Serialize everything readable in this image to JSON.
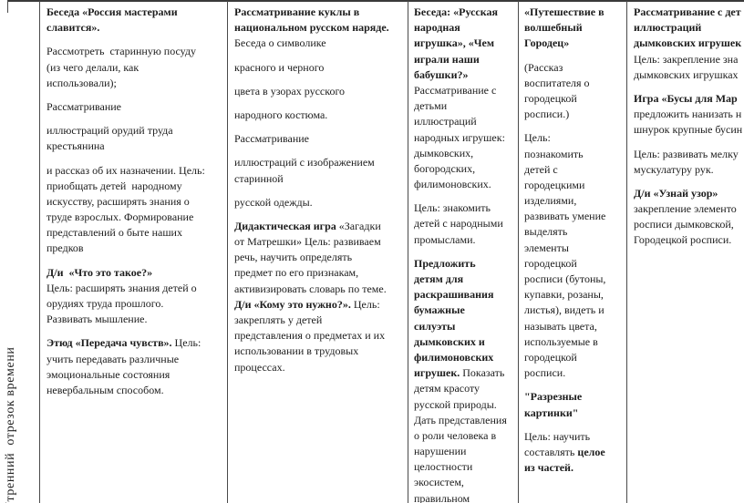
{
  "colors": {
    "border": "#4a4a4a",
    "text": "#1c1c1c"
  },
  "table": {
    "row_label": "Утренний  отрезок времени",
    "columns": [
      {
        "paragraphs": [
          {
            "lines": [
              [
                {
                  "t": "Беседа «Россия мастерами",
                  "b": true
                }
              ],
              [
                {
                  "t": "славится».",
                  "b": true
                }
              ]
            ]
          },
          {
            "lines": [
              [
                {
                  "t": "Рассмотреть  старинную посуду"
                }
              ],
              [
                {
                  "t": "(из чего делали, как"
                }
              ],
              [
                {
                  "t": "использовали);"
                }
              ]
            ]
          },
          {
            "lines": [
              [
                {
                  "t": "Рассматривание"
                }
              ]
            ]
          },
          {
            "lines": [
              [
                {
                  "t": "иллюстраций орудий труда"
                }
              ],
              [
                {
                  "t": "крестьянина"
                }
              ]
            ]
          },
          {
            "lines": [
              [
                {
                  "t": "и рассказ об их назначении. Цель:"
                }
              ],
              [
                {
                  "t": "приобщать детей  народному"
                }
              ],
              [
                {
                  "t": "искусству, расширять знания о"
                }
              ],
              [
                {
                  "t": "труде взрослых. Формирование"
                }
              ],
              [
                {
                  "t": "представлений о быте наших"
                }
              ],
              [
                {
                  "t": "предков"
                }
              ]
            ]
          },
          {
            "lines": [
              [
                {
                  "t": "Д/и  «Что это такое?»",
                  "b": true
                }
              ],
              [
                {
                  "t": "Цель: расширять знания детей о"
                }
              ],
              [
                {
                  "t": "орудиях труда прошлого."
                }
              ],
              [
                {
                  "t": "Развивать мышление."
                }
              ]
            ]
          },
          {
            "lines": [
              [
                {
                  "t": "Этюд «Передача чувств».",
                  "b": true
                },
                {
                  "t": " Цель:"
                }
              ],
              [
                {
                  "t": "учить передавать различные"
                }
              ],
              [
                {
                  "t": "эмоциональные состояния"
                }
              ],
              [
                {
                  "t": "невербальным способом."
                }
              ]
            ]
          }
        ]
      },
      {
        "paragraphs": [
          {
            "lines": [
              [
                {
                  "t": "Рассматривание куклы в",
                  "b": true
                }
              ],
              [
                {
                  "t": "национальном русском наряде.",
                  "b": true
                }
              ],
              [
                {
                  "t": "Беседа о символике"
                }
              ]
            ]
          },
          {
            "lines": [
              [
                {
                  "t": "красного и черного"
                }
              ]
            ]
          },
          {
            "lines": [
              [
                {
                  "t": "цвета в узорах русского"
                }
              ]
            ]
          },
          {
            "lines": [
              [
                {
                  "t": "народного костюма."
                }
              ]
            ]
          },
          {
            "lines": [
              [
                {
                  "t": "Рассматривание"
                }
              ]
            ]
          },
          {
            "lines": [
              [
                {
                  "t": "иллюстраций с изображением"
                }
              ],
              [
                {
                  "t": "старинной"
                }
              ]
            ]
          },
          {
            "lines": [
              [
                {
                  "t": "русской одежды."
                }
              ]
            ]
          },
          {
            "lines": [
              [
                {
                  "t": "Дидактическая игра",
                  "b": true
                },
                {
                  "t": " «Загадки"
                }
              ],
              [
                {
                  "t": "от Матрешки» Цель: развиваем"
                }
              ],
              [
                {
                  "t": "речь, научить определять"
                }
              ],
              [
                {
                  "t": "предмет по его признакам,"
                }
              ],
              [
                {
                  "t": "активизировать словарь по теме."
                }
              ],
              [
                {
                  "t": "Д/и «Кому это нужно?».",
                  "b": true
                },
                {
                  "t": " Цель:"
                }
              ],
              [
                {
                  "t": "закреплять у детей"
                }
              ],
              [
                {
                  "t": "представления о предметах и их"
                }
              ],
              [
                {
                  "t": "использовании в трудовых"
                }
              ],
              [
                {
                  "t": "процессах."
                }
              ]
            ]
          }
        ]
      },
      {
        "paragraphs": [
          {
            "lines": [
              [
                {
                  "t": "Беседа: «Русская",
                  "b": true
                }
              ],
              [
                {
                  "t": "народная",
                  "b": true
                }
              ],
              [
                {
                  "t": "игрушка», «Чем",
                  "b": true
                }
              ],
              [
                {
                  "t": "играли наши",
                  "b": true
                }
              ],
              [
                {
                  "t": "бабушки?»",
                  "b": true
                }
              ],
              [
                {
                  "t": "Рассматривание с"
                }
              ],
              [
                {
                  "t": "детьми"
                }
              ],
              [
                {
                  "t": "иллюстраций"
                }
              ],
              [
                {
                  "t": "народных игрушек:"
                }
              ],
              [
                {
                  "t": "дымковских,"
                }
              ],
              [
                {
                  "t": "богородских,"
                }
              ],
              [
                {
                  "t": "филимоновских."
                }
              ]
            ]
          },
          {
            "lines": [
              [
                {
                  "t": "Цель: знакомить"
                }
              ],
              [
                {
                  "t": "детей с народными"
                }
              ],
              [
                {
                  "t": "промыслами."
                }
              ]
            ]
          },
          {
            "lines": [
              [
                {
                  "t": "Предложить",
                  "b": true
                }
              ],
              [
                {
                  "t": "детям для",
                  "b": true
                }
              ],
              [
                {
                  "t": "раскрашивания",
                  "b": true
                }
              ],
              [
                {
                  "t": "бумажные",
                  "b": true
                }
              ],
              [
                {
                  "t": "силуэты",
                  "b": true
                }
              ],
              [
                {
                  "t": "дымковских и",
                  "b": true
                }
              ],
              [
                {
                  "t": "филимоновских",
                  "b": true
                }
              ],
              [
                {
                  "t": "игрушек.",
                  "b": true
                },
                {
                  "t": " Показать"
                }
              ],
              [
                {
                  "t": "детям красоту"
                }
              ],
              [
                {
                  "t": "русской природы."
                }
              ],
              [
                {
                  "t": "Дать представления"
                }
              ],
              [
                {
                  "t": "о роли человека в"
                }
              ],
              [
                {
                  "t": "нарушении"
                }
              ],
              [
                {
                  "t": "целостности"
                }
              ],
              [
                {
                  "t": "экосистем,"
                }
              ],
              [
                {
                  "t": "правильном"
                }
              ]
            ]
          }
        ]
      },
      {
        "paragraphs": [
          {
            "lines": [
              [
                {
                  "t": "«Путешествие в",
                  "b": true
                }
              ],
              [
                {
                  "t": "волшебный",
                  "b": true
                }
              ],
              [
                {
                  "t": "Городец»",
                  "b": true
                }
              ]
            ]
          },
          {
            "lines": [
              [
                {
                  "t": "(Рассказ"
                }
              ],
              [
                {
                  "t": "воспитателя о"
                }
              ],
              [
                {
                  "t": "городецкой"
                }
              ],
              [
                {
                  "t": "росписи.)"
                }
              ]
            ]
          },
          {
            "lines": [
              [
                {
                  "t": "Цель:"
                }
              ],
              [
                {
                  "t": "познакомить"
                }
              ],
              [
                {
                  "t": "детей с"
                }
              ],
              [
                {
                  "t": "городецкими"
                }
              ],
              [
                {
                  "t": "изделиями,"
                }
              ],
              [
                {
                  "t": "развивать умение"
                }
              ],
              [
                {
                  "t": "выделять"
                }
              ],
              [
                {
                  "t": "элементы"
                }
              ],
              [
                {
                  "t": "городецкой"
                }
              ],
              [
                {
                  "t": "росписи (бутоны,"
                }
              ],
              [
                {
                  "t": "купавки, розаны,"
                }
              ],
              [
                {
                  "t": "листья), видеть и"
                }
              ],
              [
                {
                  "t": "называть цвета,"
                }
              ],
              [
                {
                  "t": "используемые в"
                }
              ],
              [
                {
                  "t": "городецкой"
                }
              ],
              [
                {
                  "t": "росписи."
                }
              ]
            ]
          },
          {
            "lines": [
              [
                {
                  "t": "\"Разрезные",
                  "b": true
                }
              ],
              [
                {
                  "t": "картинки\"",
                  "b": true
                }
              ]
            ]
          },
          {
            "lines": [
              [
                {
                  "t": "Цель: научить"
                }
              ],
              [
                {
                  "t": "составлять "
                },
                {
                  "t": "целое",
                  "b": true
                }
              ],
              [
                {
                  "t": "из частей.",
                  "b": true
                }
              ]
            ]
          }
        ]
      },
      {
        "paragraphs": [
          {
            "lines": [
              [
                {
                  "t": "Рассматривание с дет",
                  "b": true
                }
              ],
              [
                {
                  "t": "иллюстраций",
                  "b": true
                }
              ],
              [
                {
                  "t": "дымковских игрушек",
                  "b": true
                }
              ],
              [
                {
                  "t": "Цель: закрепление зна"
                }
              ],
              [
                {
                  "t": "дымковских игрушках"
                }
              ]
            ]
          },
          {
            "lines": [
              [
                {
                  "t": "Игра «Бусы для Мар",
                  "b": true
                }
              ],
              [
                {
                  "t": "предложить нанизать н"
                }
              ],
              [
                {
                  "t": "шнурок крупные бусин"
                }
              ]
            ]
          },
          {
            "lines": [
              [
                {
                  "t": "Цель: развивать мелку"
                }
              ],
              [
                {
                  "t": "мускулатуру рук."
                }
              ]
            ]
          },
          {
            "lines": [
              [
                {
                  "t": "Д/и «Узнай узор»",
                  "b": true
                }
              ],
              [
                {
                  "t": "закрепление элементо"
                }
              ],
              [
                {
                  "t": "росписи дымковской,"
                }
              ],
              [
                {
                  "t": "Городецкой росписи."
                }
              ]
            ]
          }
        ]
      }
    ]
  }
}
